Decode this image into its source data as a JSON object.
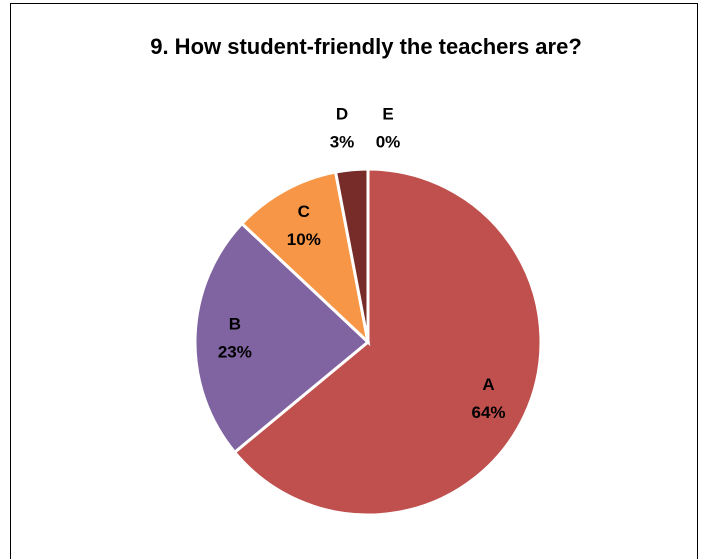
{
  "chart_data": {
    "type": "pie",
    "title": "9. How student-friendly the teachers are?",
    "categories": [
      "A",
      "B",
      "C",
      "D",
      "E"
    ],
    "values": [
      64,
      23,
      10,
      3,
      0
    ],
    "value_labels": [
      "64%",
      "23%",
      "10%",
      "3%",
      "0%"
    ],
    "colors": [
      "#c0504d",
      "#8064a2",
      "#f79646",
      "#772c2a",
      "#4bacc6"
    ]
  }
}
